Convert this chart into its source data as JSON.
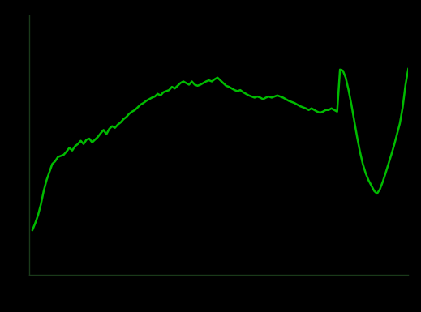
{
  "line_color": "#00bb00",
  "background_color": "#000000",
  "spine_color": "#1a3a1a",
  "line_width": 1.8,
  "values": [
    0.82,
    0.95,
    1.1,
    1.3,
    1.55,
    1.75,
    1.9,
    2.05,
    2.1,
    2.18,
    2.2,
    2.22,
    2.28,
    2.35,
    2.3,
    2.38,
    2.42,
    2.48,
    2.42,
    2.5,
    2.52,
    2.45,
    2.5,
    2.55,
    2.62,
    2.68,
    2.6,
    2.7,
    2.75,
    2.72,
    2.78,
    2.82,
    2.88,
    2.92,
    2.98,
    3.02,
    3.05,
    3.1,
    3.15,
    3.18,
    3.22,
    3.25,
    3.28,
    3.3,
    3.35,
    3.32,
    3.38,
    3.4,
    3.42,
    3.48,
    3.45,
    3.5,
    3.55,
    3.58,
    3.55,
    3.52,
    3.58,
    3.52,
    3.5,
    3.52,
    3.55,
    3.58,
    3.6,
    3.58,
    3.62,
    3.65,
    3.6,
    3.55,
    3.5,
    3.48,
    3.45,
    3.42,
    3.4,
    3.42,
    3.38,
    3.35,
    3.32,
    3.3,
    3.28,
    3.3,
    3.28,
    3.25,
    3.28,
    3.3,
    3.28,
    3.3,
    3.32,
    3.3,
    3.28,
    3.25,
    3.22,
    3.2,
    3.18,
    3.15,
    3.12,
    3.1,
    3.08,
    3.05,
    3.08,
    3.05,
    3.02,
    3.0,
    3.02,
    3.05,
    3.05,
    3.08,
    3.05,
    3.02,
    3.8,
    3.78,
    3.65,
    3.42,
    3.15,
    2.85,
    2.55,
    2.28,
    2.05,
    1.88,
    1.75,
    1.65,
    1.55,
    1.5,
    1.58,
    1.72,
    1.88,
    2.05,
    2.22,
    2.4,
    2.6,
    2.8,
    3.1,
    3.52,
    3.82
  ],
  "ylim": [
    0.0,
    4.8
  ],
  "n_points": 133
}
